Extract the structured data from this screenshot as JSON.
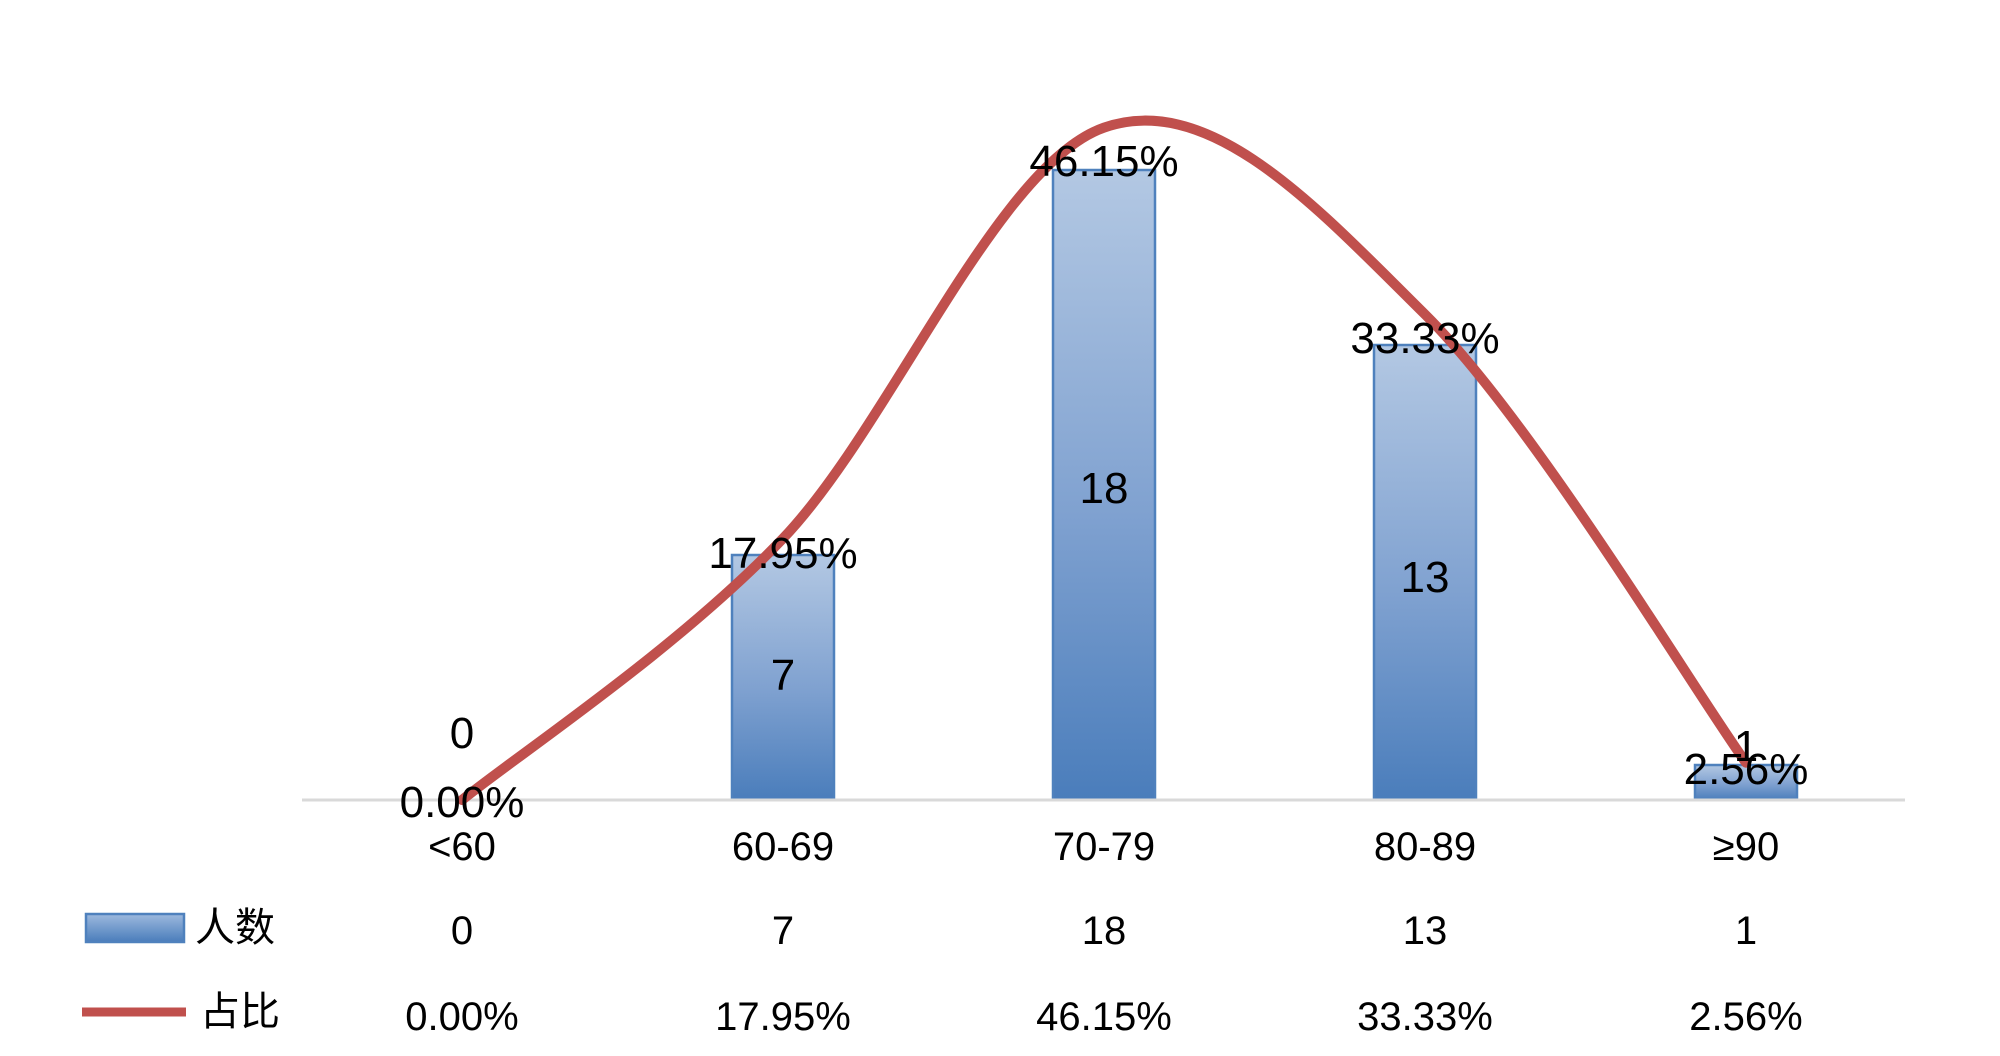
{
  "chart_data": {
    "type": "bar",
    "title": "",
    "xlabel": "",
    "ylabel": "",
    "categories": [
      "<60",
      "60-69",
      "70-79",
      "80-89",
      "≥90"
    ],
    "series": [
      {
        "name": "人数",
        "kind": "bar",
        "values": [
          0,
          7,
          18,
          13,
          1
        ],
        "labels": [
          "0",
          "7",
          "18",
          "13",
          "1"
        ],
        "color": "#4F81BD"
      },
      {
        "name": "占比",
        "kind": "line",
        "values": [
          0.0,
          17.95,
          46.15,
          33.33,
          2.56
        ],
        "labels": [
          "0.00%",
          "17.95%",
          "46.15%",
          "33.33%",
          "2.56%"
        ],
        "color": "#C0504D",
        "smooth": true
      }
    ],
    "grid": false,
    "legend": "data-table-left"
  }
}
